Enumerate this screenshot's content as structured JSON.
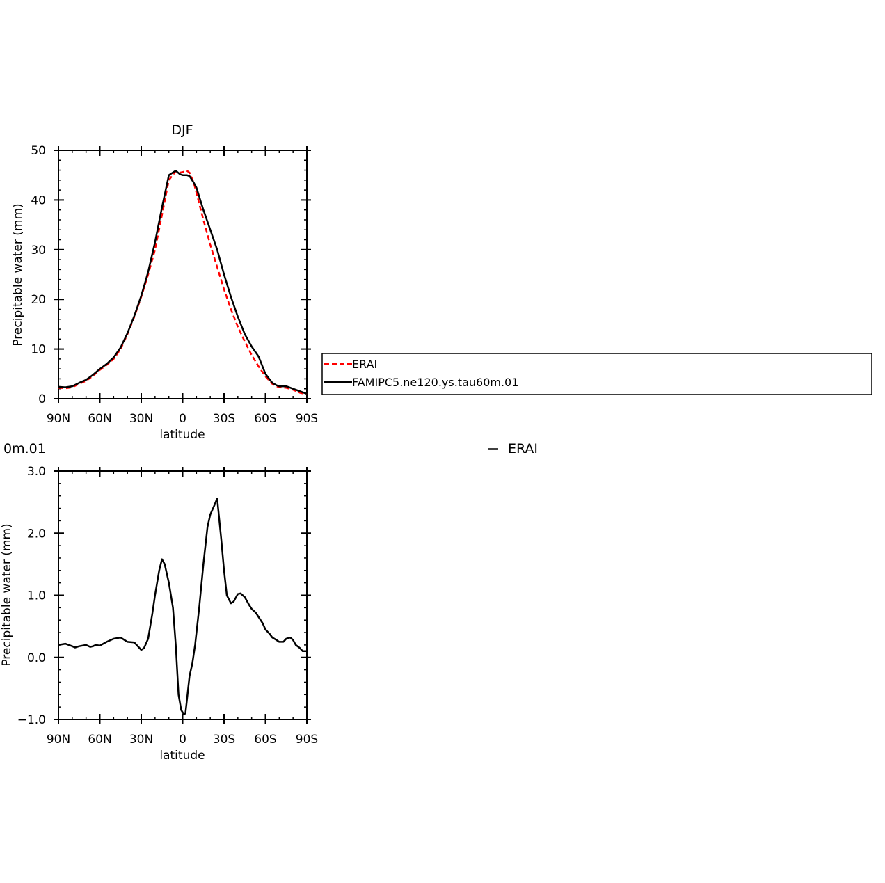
{
  "colors": {
    "erai": "#ff0000",
    "model": "#000000"
  },
  "chart_data": [
    {
      "type": "line",
      "title": "DJF",
      "xlabel": "latitude",
      "ylabel": "Precipitable water (mm)",
      "xlim": [
        90,
        -90
      ],
      "ylim": [
        0,
        50
      ],
      "x_ticks": [
        90,
        60,
        30,
        0,
        -30,
        -60,
        -90
      ],
      "x_tick_labels": [
        "90N",
        "60N",
        "30N",
        "0",
        "30S",
        "60S",
        "90S"
      ],
      "y_ticks": [
        0,
        10,
        20,
        30,
        40,
        50
      ],
      "y_tick_labels": [
        "0",
        "10",
        "20",
        "30",
        "40",
        "50"
      ],
      "legend": [
        "ERAI",
        "FAMIPC5.ne120.ys.tau60m.01"
      ],
      "legend_placement": "right",
      "series": [
        {
          "name": "ERAI",
          "color": "#ff0000",
          "style": "dashed",
          "x": [
            90,
            85,
            80,
            75,
            70,
            65,
            60,
            55,
            50,
            45,
            40,
            35,
            30,
            25,
            20,
            15,
            10,
            5,
            2,
            0,
            -3,
            -5,
            -8,
            -10,
            -15,
            -20,
            -25,
            -30,
            -35,
            -40,
            -45,
            -50,
            -55,
            -60,
            -65,
            -68,
            -70,
            -75,
            -80,
            -85,
            -90
          ],
          "y": [
            2.2,
            2.1,
            2.3,
            3.0,
            3.6,
            4.6,
            5.8,
            6.8,
            8.0,
            10.0,
            13.0,
            16.5,
            20.5,
            25.0,
            30.0,
            37.0,
            44.0,
            45.8,
            45.5,
            45.6,
            45.9,
            45.5,
            43.5,
            41.5,
            36.0,
            31.0,
            26.5,
            22.0,
            18.0,
            14.5,
            11.5,
            8.8,
            6.5,
            4.5,
            3.0,
            2.5,
            2.3,
            2.2,
            1.8,
            1.2,
            0.9
          ]
        },
        {
          "name": "FAMIPC5.ne120.ys.tau60m.01",
          "color": "#000000",
          "style": "solid",
          "x": [
            90,
            85,
            80,
            75,
            70,
            65,
            60,
            55,
            50,
            45,
            40,
            35,
            30,
            25,
            20,
            15,
            10,
            5,
            2,
            0,
            -3,
            -5,
            -8,
            -10,
            -15,
            -20,
            -25,
            -30,
            -35,
            -40,
            -45,
            -50,
            -55,
            -60,
            -65,
            -68,
            -70,
            -75,
            -80,
            -85,
            -90
          ],
          "y": [
            2.4,
            2.3,
            2.5,
            3.2,
            3.8,
            4.8,
            6.0,
            7.0,
            8.3,
            10.3,
            13.2,
            16.7,
            20.7,
            25.5,
            31.5,
            38.5,
            45.0,
            45.9,
            45.2,
            45.0,
            45.0,
            44.8,
            43.5,
            42.5,
            38.0,
            34.0,
            30.0,
            25.0,
            20.5,
            16.5,
            13.0,
            10.5,
            8.5,
            5.0,
            3.2,
            2.7,
            2.5,
            2.5,
            2.0,
            1.5,
            1.0
          ]
        }
      ]
    },
    {
      "type": "line",
      "title_fragment": "0m.01",
      "legend_fragment": "ERAI",
      "xlabel": "latitude",
      "ylabel": "Precipitable water (mm)",
      "xlim": [
        90,
        -90
      ],
      "ylim": [
        -1.0,
        3.0
      ],
      "x_ticks": [
        90,
        60,
        30,
        0,
        -30,
        -60,
        -90
      ],
      "x_tick_labels": [
        "90N",
        "60N",
        "30N",
        "0",
        "30S",
        "60S",
        "90S"
      ],
      "y_ticks": [
        -1.0,
        0.0,
        1.0,
        2.0,
        3.0
      ],
      "y_tick_labels": [
        "−1.0",
        "0.0",
        "1.0",
        "2.0",
        "3.0"
      ],
      "series": [
        {
          "color": "#000000",
          "style": "solid",
          "x": [
            90,
            85,
            80,
            78,
            75,
            70,
            67,
            65,
            63,
            60,
            55,
            50,
            45,
            40,
            35,
            30,
            28,
            25,
            22,
            20,
            17,
            15,
            13,
            10,
            7,
            5,
            3,
            1,
            -1,
            -2,
            -3,
            -5,
            -7,
            -9,
            -12,
            -15,
            -18,
            -20,
            -23,
            -25,
            -28,
            -30,
            -32,
            -35,
            -37,
            -40,
            -42,
            -45,
            -48,
            -50,
            -53,
            -55,
            -58,
            -60,
            -63,
            -65,
            -68,
            -70,
            -73,
            -75,
            -78,
            -80,
            -82,
            -85,
            -87,
            -90
          ],
          "y": [
            0.2,
            0.22,
            0.18,
            0.16,
            0.18,
            0.2,
            0.17,
            0.18,
            0.2,
            0.19,
            0.25,
            0.3,
            0.32,
            0.25,
            0.24,
            0.12,
            0.15,
            0.3,
            0.7,
            1.0,
            1.4,
            1.58,
            1.5,
            1.2,
            0.8,
            0.2,
            -0.6,
            -0.85,
            -0.92,
            -0.9,
            -0.7,
            -0.3,
            -0.1,
            0.2,
            0.8,
            1.5,
            2.1,
            2.3,
            2.45,
            2.56,
            1.9,
            1.4,
            1.0,
            0.87,
            0.9,
            1.02,
            1.03,
            0.97,
            0.85,
            0.78,
            0.72,
            0.65,
            0.55,
            0.45,
            0.38,
            0.32,
            0.28,
            0.25,
            0.25,
            0.3,
            0.32,
            0.28,
            0.2,
            0.15,
            0.1,
            0.1
          ]
        }
      ]
    }
  ]
}
